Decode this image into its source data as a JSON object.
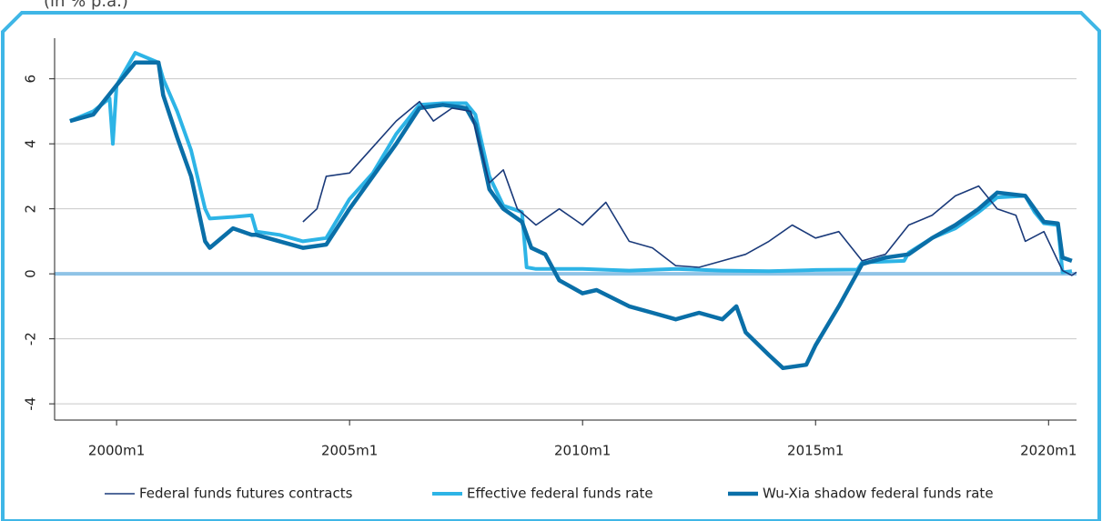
{
  "chart_data": {
    "type": "line",
    "subtitle": "(in % p.a.)",
    "xlim": [
      1998.67,
      2020.6
    ],
    "xticks": [
      {
        "value": 2000,
        "label": "2000m1"
      },
      {
        "value": 2005,
        "label": "2005m1"
      },
      {
        "value": 2010,
        "label": "2010m1"
      },
      {
        "value": 2015,
        "label": "2015m1"
      },
      {
        "value": 2020,
        "label": "2020m1"
      }
    ],
    "ylim": [
      -4.5,
      7.25
    ],
    "yticks": [
      -4,
      -2,
      0,
      2,
      4,
      6
    ],
    "grid": true,
    "legend": "bottom",
    "series": [
      {
        "name": "Federal funds futures contracts",
        "color": "#1a3a7a",
        "x": [
          2004.0,
          2004.3,
          2004.5,
          2005.0,
          2005.5,
          2006.0,
          2006.5,
          2006.8,
          2007.2,
          2007.6,
          2008.0,
          2008.3,
          2008.6,
          2009.0,
          2009.5,
          2010.0,
          2010.5,
          2011.0,
          2011.5,
          2012.0,
          2012.5,
          2013.0,
          2013.5,
          2014.0,
          2014.5,
          2015.0,
          2015.5,
          2016.0,
          2016.5,
          2017.0,
          2017.5,
          2018.0,
          2018.5,
          2018.9,
          2019.3,
          2019.5,
          2019.9,
          2020.3,
          2020.5,
          2020.6
        ],
        "values": [
          1.6,
          2.0,
          3.0,
          3.1,
          3.9,
          4.7,
          5.3,
          4.7,
          5.1,
          5.0,
          2.8,
          3.2,
          2.0,
          1.5,
          2.0,
          1.5,
          2.2,
          1.0,
          0.8,
          0.25,
          0.2,
          0.4,
          0.6,
          1.0,
          1.5,
          1.1,
          1.3,
          0.4,
          0.6,
          1.5,
          1.8,
          2.4,
          2.7,
          2.0,
          1.8,
          1.0,
          1.3,
          0.1,
          -0.05,
          0.05
        ]
      },
      {
        "name": "Effective federal funds rate",
        "color": "#2db4e6",
        "x": [
          1999.0,
          1999.5,
          1999.85,
          1999.92,
          2000.0,
          2000.4,
          2000.9,
          2001.0,
          2001.3,
          2001.6,
          2001.9,
          2002.0,
          2002.5,
          2002.9,
          2003.0,
          2003.5,
          2004.0,
          2004.5,
          2005.0,
          2005.5,
          2006.0,
          2006.5,
          2007.0,
          2007.5,
          2007.7,
          2008.0,
          2008.3,
          2008.7,
          2008.8,
          2009.0,
          2010.0,
          2011.0,
          2012.0,
          2013.0,
          2014.0,
          2015.0,
          2015.9,
          2016.0,
          2016.9,
          2017.0,
          2017.5,
          2018.0,
          2018.5,
          2018.9,
          2019.5,
          2019.7,
          2019.9,
          2020.2,
          2020.3,
          2020.5
        ],
        "values": [
          4.7,
          5.0,
          5.4,
          4.0,
          5.8,
          6.8,
          6.5,
          6.0,
          5.0,
          3.8,
          2.0,
          1.7,
          1.75,
          1.8,
          1.3,
          1.2,
          1.0,
          1.1,
          2.3,
          3.1,
          4.3,
          5.2,
          5.25,
          5.25,
          4.9,
          3.0,
          2.1,
          1.9,
          0.2,
          0.15,
          0.15,
          0.1,
          0.15,
          0.1,
          0.08,
          0.12,
          0.13,
          0.35,
          0.4,
          0.65,
          1.1,
          1.4,
          1.9,
          2.35,
          2.4,
          1.9,
          1.55,
          1.5,
          0.05,
          0.08
        ]
      },
      {
        "name": "Wu-Xia shadow federal funds rate",
        "color": "#0a6fa8",
        "x": [
          1999.0,
          1999.5,
          2000.0,
          2000.4,
          2000.9,
          2001.0,
          2001.3,
          2001.6,
          2001.9,
          2002.0,
          2002.5,
          2002.9,
          2003.0,
          2003.5,
          2004.0,
          2004.5,
          2005.0,
          2005.5,
          2006.0,
          2006.5,
          2007.0,
          2007.5,
          2007.7,
          2008.0,
          2008.3,
          2008.7,
          2008.9,
          2009.2,
          2009.5,
          2010.0,
          2010.3,
          2011.0,
          2011.5,
          2012.0,
          2012.5,
          2013.0,
          2013.3,
          2013.5,
          2014.0,
          2014.3,
          2014.8,
          2015.0,
          2015.5,
          2016.0,
          2016.5,
          2017.0,
          2017.5,
          2018.0,
          2018.5,
          2018.9,
          2019.5,
          2019.9,
          2020.2,
          2020.3,
          2020.5
        ],
        "values": [
          4.7,
          4.9,
          5.8,
          6.5,
          6.5,
          5.5,
          4.2,
          3.0,
          1.0,
          0.8,
          1.4,
          1.2,
          1.2,
          1.0,
          0.8,
          0.9,
          2.0,
          3.0,
          4.0,
          5.1,
          5.2,
          5.1,
          4.6,
          2.6,
          2.0,
          1.6,
          0.8,
          0.6,
          -0.2,
          -0.6,
          -0.5,
          -1.0,
          -1.2,
          -1.4,
          -1.2,
          -1.4,
          -1.0,
          -1.8,
          -2.5,
          -2.9,
          -2.8,
          -2.2,
          -1.0,
          0.3,
          0.5,
          0.6,
          1.1,
          1.5,
          2.0,
          2.5,
          2.4,
          1.6,
          1.55,
          0.5,
          0.4
        ]
      }
    ]
  }
}
